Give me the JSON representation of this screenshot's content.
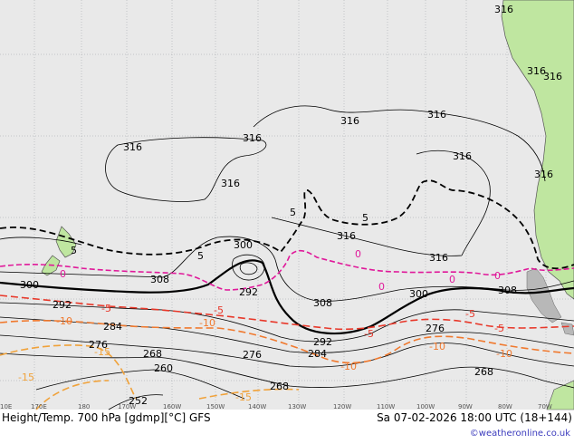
{
  "title": "Height/Temp. 700 hPa [gdmp][°C] GFS",
  "datetime": "Sa 07-02-2026 18:00 UTC (18+144)",
  "credit": "©weatheronline.co.uk",
  "colors": {
    "ocean": "#e9e9e9",
    "land": "#bfe6a0",
    "height_contour": "#000000",
    "temp_0": "#e0199a",
    "temp_neg5": "#e8382a",
    "temp_neg10": "#f0792e",
    "temp_neg15": "#f0a23a",
    "temp_pos5": "#000000",
    "grid": "#9aa0a6",
    "credit": "#3b3bbd"
  },
  "longitude_ticks": [
    "10E",
    "170E",
    "180",
    "170W",
    "160W",
    "150W",
    "140W",
    "130W",
    "120W",
    "110W",
    "100W",
    "90W",
    "80W",
    "70W"
  ],
  "height_labels": [
    {
      "id": "h316a",
      "text": "316"
    },
    {
      "id": "h316b",
      "text": "316"
    },
    {
      "id": "h316c",
      "text": "316"
    },
    {
      "id": "h316d",
      "text": "316"
    },
    {
      "id": "h316e",
      "text": "316"
    },
    {
      "id": "h316f",
      "text": "316"
    },
    {
      "id": "h316g",
      "text": "316"
    },
    {
      "id": "h316h",
      "text": "316"
    },
    {
      "id": "h316i",
      "text": "316"
    },
    {
      "id": "h316j",
      "text": "316"
    },
    {
      "id": "h316k",
      "text": "316"
    },
    {
      "id": "h316l",
      "text": "316"
    },
    {
      "id": "h308a",
      "text": "308"
    },
    {
      "id": "h308b",
      "text": "308"
    },
    {
      "id": "h308c",
      "text": "308"
    },
    {
      "id": "h300a",
      "text": "300"
    },
    {
      "id": "h300b",
      "text": "300"
    },
    {
      "id": "h300c",
      "text": "300"
    },
    {
      "id": "h292a",
      "text": "292"
    },
    {
      "id": "h292b",
      "text": "292"
    },
    {
      "id": "h292c",
      "text": "292"
    },
    {
      "id": "h284a",
      "text": "284"
    },
    {
      "id": "h284b",
      "text": "284"
    },
    {
      "id": "h276a",
      "text": "276"
    },
    {
      "id": "h276b",
      "text": "276"
    },
    {
      "id": "h276c",
      "text": "276"
    },
    {
      "id": "h268a",
      "text": "268"
    },
    {
      "id": "h268b",
      "text": "268"
    },
    {
      "id": "h268c",
      "text": "268"
    },
    {
      "id": "h260",
      "text": "260"
    },
    {
      "id": "h252",
      "text": "252"
    }
  ],
  "temperature_labels": [
    {
      "id": "t5a",
      "text": "5",
      "color": "#000000"
    },
    {
      "id": "t5b",
      "text": "5",
      "color": "#000000"
    },
    {
      "id": "t5c",
      "text": "5",
      "color": "#000000"
    },
    {
      "id": "t5d",
      "text": "5",
      "color": "#000000"
    },
    {
      "id": "t0a",
      "text": "0",
      "color": "#e0199a"
    },
    {
      "id": "t0b",
      "text": "0",
      "color": "#e0199a"
    },
    {
      "id": "t0c",
      "text": "0",
      "color": "#e0199a"
    },
    {
      "id": "t0d",
      "text": "0",
      "color": "#e0199a"
    },
    {
      "id": "t0e",
      "text": "0",
      "color": "#e0199a"
    },
    {
      "id": "tn5a",
      "text": "-5",
      "color": "#e8382a"
    },
    {
      "id": "tn5b",
      "text": "-5",
      "color": "#e8382a"
    },
    {
      "id": "tn5c",
      "text": "-5",
      "color": "#e8382a"
    },
    {
      "id": "tn5d",
      "text": "-5",
      "color": "#e8382a"
    },
    {
      "id": "tn5e",
      "text": "-5",
      "color": "#e8382a"
    },
    {
      "id": "tn10a",
      "text": "-10",
      "color": "#f0792e"
    },
    {
      "id": "tn10b",
      "text": "-10",
      "color": "#f0792e"
    },
    {
      "id": "tn10c",
      "text": "-10",
      "color": "#f0792e"
    },
    {
      "id": "tn10d",
      "text": "-10",
      "color": "#f0792e"
    },
    {
      "id": "tn10e",
      "text": "-10",
      "color": "#f0792e"
    },
    {
      "id": "tn15a",
      "text": "-15",
      "color": "#f0a23a"
    },
    {
      "id": "tn15b",
      "text": "-15",
      "color": "#f0a23a"
    },
    {
      "id": "tn15c",
      "text": "-15",
      "color": "#f0a23a"
    }
  ]
}
